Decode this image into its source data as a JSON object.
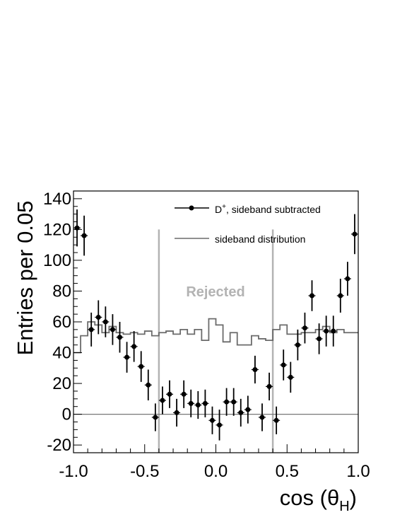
{
  "chart_data": {
    "type": "scatter",
    "title": "",
    "xlabel": "cos (θH)",
    "xlabel_parts": {
      "main": "cos (θ",
      "sub": "H",
      "close": ")"
    },
    "ylabel": "Entries per 0.05",
    "xlim": [
      -1.0,
      1.0
    ],
    "ylim": [
      -25,
      145
    ],
    "x_ticks": [
      -1.0,
      -0.5,
      0.0,
      0.5,
      1.0
    ],
    "x_tick_labels": [
      "-1.0",
      "-0.5",
      "0.0",
      "0.5",
      "1.0"
    ],
    "y_ticks": [
      -20,
      0,
      20,
      40,
      60,
      80,
      100,
      120,
      140
    ],
    "y_tick_labels": [
      "-20",
      "0",
      "20",
      "40",
      "60",
      "80",
      "100",
      "120",
      "140"
    ],
    "grid": false,
    "legend_position": "top-right",
    "annotation": {
      "text": "Rejected",
      "color": "#b3b3b3"
    },
    "cut_lines": {
      "x": [
        -0.4,
        0.4
      ],
      "color": "#b3b3b3"
    },
    "series": [
      {
        "name": "D+, sideband subtracted",
        "legend_main": "D",
        "legend_sup": "+",
        "legend_rest": ", sideband subtracted",
        "kind": "points",
        "color": "#000000",
        "bin_width": 0.05,
        "x": [
          -0.975,
          -0.925,
          -0.875,
          -0.825,
          -0.775,
          -0.725,
          -0.675,
          -0.625,
          -0.575,
          -0.525,
          -0.475,
          -0.425,
          -0.375,
          -0.325,
          -0.275,
          -0.225,
          -0.175,
          -0.125,
          -0.075,
          -0.025,
          0.025,
          0.075,
          0.125,
          0.175,
          0.225,
          0.275,
          0.325,
          0.375,
          0.425,
          0.475,
          0.525,
          0.575,
          0.625,
          0.675,
          0.725,
          0.775,
          0.825,
          0.875,
          0.925,
          0.975
        ],
        "y": [
          121,
          116,
          55,
          63,
          60,
          55,
          50,
          37,
          44,
          31,
          19,
          -2,
          9,
          13,
          1,
          13,
          7,
          6,
          7,
          -4,
          -7,
          8,
          8,
          1,
          3,
          29,
          -2,
          18,
          -4,
          32,
          24,
          45,
          56,
          77,
          49,
          54,
          54,
          77,
          88,
          117
        ],
        "err": [
          12,
          13,
          11,
          11,
          10,
          10,
          10,
          10,
          10,
          10,
          10,
          9,
          9,
          9,
          9,
          9,
          9,
          9,
          9,
          9,
          10,
          9,
          9,
          9,
          9,
          9,
          9,
          9,
          9,
          10,
          10,
          10,
          10,
          10,
          10,
          10,
          10,
          11,
          11,
          13
        ]
      },
      {
        "name": "sideband distribution",
        "kind": "step",
        "color": "#6b6b6b",
        "bin_edges_start": -1.0,
        "bin_width": 0.05,
        "values": [
          40,
          51,
          60,
          58,
          53,
          57,
          53,
          52,
          53,
          52,
          54,
          51,
          53,
          54,
          52,
          55,
          52,
          55,
          48,
          62,
          58,
          47,
          53,
          45,
          45,
          51,
          49,
          48,
          55,
          58,
          52,
          52,
          53,
          53,
          55,
          57,
          53,
          55,
          53,
          53
        ]
      }
    ],
    "baseline": {
      "y": 0,
      "color": "#777777"
    }
  }
}
